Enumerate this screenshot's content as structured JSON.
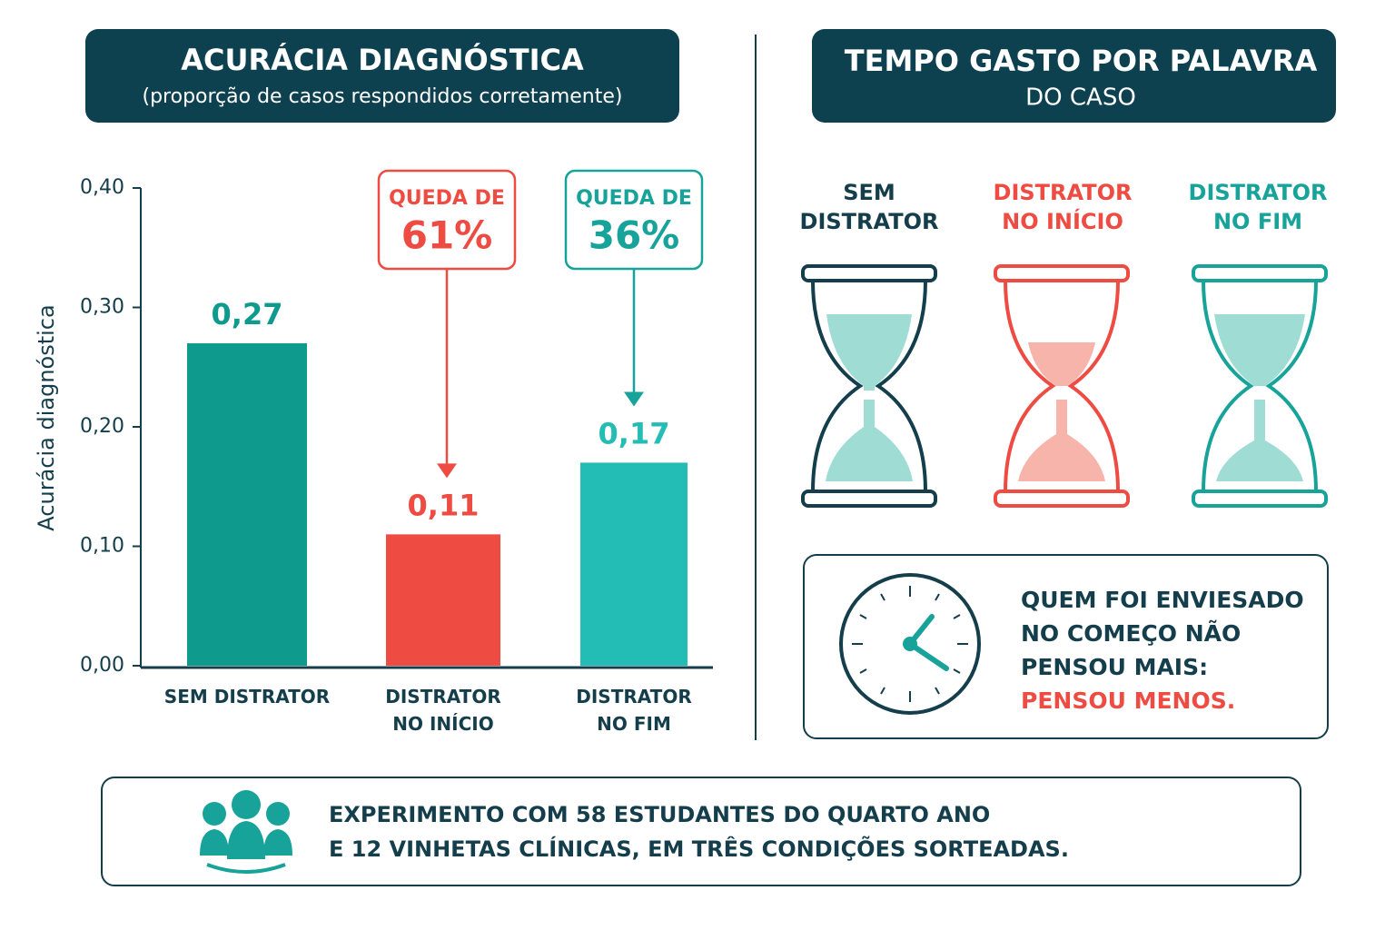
{
  "chart_data": {
    "type": "bar",
    "title": "ACURÁCIA DIAGNÓSTICA",
    "subtitle": "(proporção de casos respondidos corretamente)",
    "ylabel": "Acurácia diagnóstica",
    "categories": [
      "SEM DISTRATOR",
      "DISTRATOR NO INÍCIO",
      "DISTRATOR NO FIM"
    ],
    "values": [
      0.27,
      0.11,
      0.17
    ],
    "value_labels": [
      "0,27",
      "0,11",
      "0,17"
    ],
    "colors": [
      "#0f9a8e",
      "#ee4b43",
      "#24bdb5"
    ],
    "ylim": [
      0,
      0.4
    ],
    "yticks": [
      {
        "value": 0,
        "label": "0,00"
      },
      {
        "value": 0.1,
        "label": "0,10"
      },
      {
        "value": 0.2,
        "label": "0,20"
      },
      {
        "value": 0.3,
        "label": "0,30"
      },
      {
        "value": 0.4,
        "label": "0,40"
      }
    ],
    "annotations": [
      {
        "text": "QUEDA DE",
        "figure": "61%"
      },
      {
        "text": "QUEDA DE",
        "figure": "36%"
      }
    ]
  },
  "time_panel": {
    "title_lines": [
      "TEMPO GASTO POR PALAVRA",
      "DO CASO"
    ],
    "conditions": [
      [
        "SEM",
        "DISTRATOR"
      ],
      [
        "DISTRATOR",
        "NO INÍCIO"
      ],
      [
        "DISTRATOR",
        "NO FIM"
      ]
    ],
    "callout_lines": [
      "QUEM FOI ENVIESADO",
      "NO COMEÇO NÃO",
      "PENSOU MAIS:"
    ],
    "callout_highlight": "PENSOU MENOS."
  },
  "footer": {
    "lines": [
      "EXPERIMENTO COM 58 ESTUDANTES DO QUARTO ANO",
      "E 12 VINHETAS CLÍNICAS, EM TRÊS CONDIÇÕES SORTEADAS."
    ]
  }
}
